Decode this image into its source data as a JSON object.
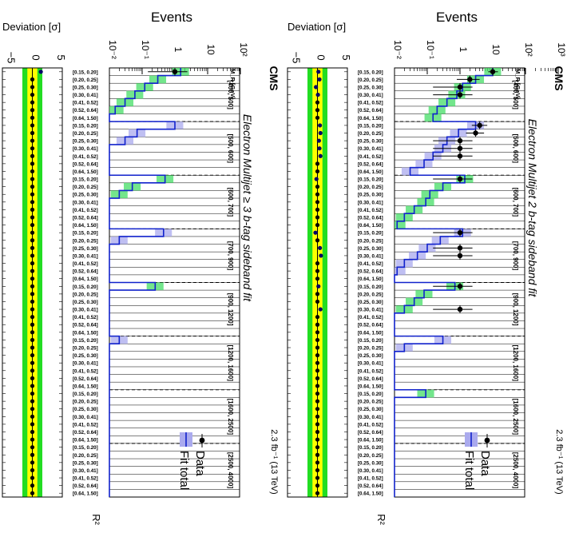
{
  "chart_data": [
    {
      "type": "bar",
      "experiment": "CMS",
      "title": "Electron Multijet 2 b-tag sideband fit",
      "lumi": "2.3 fb⁻¹ (13 TeV)",
      "ylabel": "Events",
      "xlabel": "R²",
      "mr_label": "M_R [GeV]",
      "deviation_label": "Deviation [σ]",
      "yscale": "log",
      "ylim": [
        0.01,
        1000
      ],
      "yticks": [
        "10⁻²",
        "10⁻¹",
        "1",
        "10",
        "10²",
        "10³"
      ],
      "deviation_ticks": [
        "−5",
        "0",
        "5"
      ],
      "legend": [
        "Data",
        "Fit total"
      ],
      "bands": [
        {
          "label": "[400, 500]",
          "r2": [
            "[0.15, 0.20]",
            "[0.20, 0.25]",
            "[0.25, 0.30]",
            "[0.30, 0.41]",
            "[0.41, 0.52]",
            "[0.52, 0.64]",
            "[0.64, 1.50]"
          ],
          "fit": [
            10,
            3,
            1.2,
            0.8,
            0.4,
            0.2,
            0.15
          ],
          "data": [
            10,
            2,
            1,
            1,
            null,
            null,
            null
          ],
          "deviation": [
            0.2,
            0.4,
            -0.3,
            0.1,
            0,
            0,
            0
          ]
        },
        {
          "label": "[500, 600]",
          "r2": [
            "[0.15, 0.20]",
            "[0.20, 0.25]",
            "[0.25, 0.30]",
            "[0.30, 0.41]",
            "[0.41, 0.52]",
            "[0.52, 0.64]",
            "[0.64, 1.50]"
          ],
          "fit": [
            3,
            0.9,
            0.4,
            0.3,
            0.15,
            0.08,
            0.03
          ],
          "data": [
            4,
            3,
            1,
            1,
            1,
            null,
            null
          ],
          "deviation": [
            0.5,
            0.6,
            0.3,
            0.4,
            0.6,
            0,
            0
          ]
        },
        {
          "label": "[600, 700]",
          "r2": [
            "[0.15, 0.20]",
            "[0.20, 0.25]",
            "[0.25, 0.30]",
            "[0.30, 0.41]",
            "[0.41, 0.52]",
            "[0.52, 0.64]",
            "[0.64, 1.50]"
          ],
          "fit": [
            1.4,
            0.3,
            0.12,
            0.09,
            0.04,
            0.02,
            0.012
          ],
          "data": [
            1,
            null,
            null,
            null,
            null,
            null,
            null
          ],
          "deviation": [
            -0.2,
            0,
            0,
            0,
            0,
            0,
            0
          ]
        },
        {
          "label": "[700, 900]",
          "r2": [
            "[0.15, 0.20]",
            "[0.20, 0.25]",
            "[0.25, 0.30]",
            "[0.30, 0.41]",
            "[0.41, 0.52]",
            "[0.52, 0.64]",
            "[0.64, 1.50]"
          ],
          "fit": [
            1.2,
            0.25,
            0.1,
            0.05,
            0.02,
            0.012,
            0.01
          ],
          "data": [
            1,
            null,
            1,
            1,
            null,
            null,
            null
          ],
          "deviation": [
            -0.4,
            0,
            0.5,
            0.7,
            0,
            0,
            0
          ]
        },
        {
          "label": "[900, 1200]",
          "r2": [
            "[0.15, 0.20]",
            "[0.20, 0.25]",
            "[0.25, 0.30]",
            "[0.30, 0.41]",
            "[0.41, 0.52]",
            "[0.52, 0.64]",
            "[0.64, 1.50]"
          ],
          "fit": [
            0.7,
            0.08,
            0.04,
            0.02,
            0.01,
            0.01,
            0.01
          ],
          "data": [
            1,
            null,
            null,
            1,
            null,
            null,
            null
          ],
          "deviation": [
            0.2,
            0,
            0,
            0.6,
            0,
            0,
            0
          ]
        },
        {
          "label": "[1200, 1600]",
          "r2": [
            "[0.15, 0.20]",
            "[0.20, 0.25]",
            "[0.25, 0.30]",
            "[0.30, 0.41]",
            "[0.41, 0.52]",
            "[0.52, 0.64]",
            "[0.64, 1.50]"
          ],
          "fit": [
            0.3,
            0.02,
            0.01,
            0.01,
            0.01,
            0.01,
            0.01
          ],
          "data": [
            null,
            null,
            null,
            null,
            null,
            null,
            null
          ],
          "deviation": [
            0,
            0,
            0,
            0,
            0,
            0,
            0
          ]
        },
        {
          "label": "[1600, 2500]",
          "r2": [
            "[0.15, 0.20]",
            "[0.20, 0.25]",
            "[0.25, 0.30]",
            "[0.30, 0.41]",
            "[0.41, 0.52]",
            "[0.52, 0.64]",
            "[0.64, 1.50]"
          ],
          "fit": [
            0.09,
            0.01,
            0.01,
            0.01,
            0.01,
            0.01,
            0.01
          ],
          "data": [
            null,
            null,
            null,
            null,
            null,
            null,
            null
          ],
          "deviation": [
            0,
            0,
            0,
            0,
            0,
            0,
            0
          ]
        },
        {
          "label": "[2500, 4000]",
          "r2": [
            "[0.15, 0.20]",
            "[0.20, 0.25]",
            "[0.25, 0.30]",
            "[0.30, 0.41]",
            "[0.41, 0.52]",
            "[0.52, 0.64]",
            "[0.64, 1.50]"
          ],
          "fit": [
            0.01,
            0.01,
            0.01,
            0.01,
            0.01,
            0.01,
            0.01
          ],
          "data": [
            null,
            null,
            null,
            null,
            null,
            null,
            null
          ],
          "deviation": [
            0,
            0,
            0,
            0,
            0,
            0,
            0
          ]
        }
      ]
    },
    {
      "type": "bar",
      "experiment": "CMS",
      "title": "Electron Multijet ≥ 3 b-tag sideband fit",
      "lumi": "2.3 fb⁻¹ (13 TeV)",
      "ylabel": "Events",
      "xlabel": "R²",
      "mr_label": "M_R [GeV]",
      "deviation_label": "Deviation [σ]",
      "yscale": "log",
      "ylim": [
        0.01,
        100
      ],
      "yticks": [
        "10⁻²",
        "10⁻¹",
        "1",
        "10",
        "10²"
      ],
      "deviation_ticks": [
        "−5",
        "0",
        "5"
      ],
      "legend": [
        "Data",
        "Fit total"
      ],
      "bands": [
        {
          "label": "[400, 500]",
          "r2": [
            "[0.15, 0.20]",
            "[0.20, 0.25]",
            "[0.25, 0.30]",
            "[0.30, 0.41]",
            "[0.41, 0.52]",
            "[0.52, 0.64]",
            "[0.64, 1.50]"
          ],
          "fit": [
            1.5,
            0.3,
            0.12,
            0.06,
            0.03,
            0.015,
            0.01
          ],
          "data": [
            1,
            null,
            null,
            null,
            null,
            null,
            null
          ],
          "deviation": [
            1.7,
            0,
            0,
            0,
            0,
            0,
            0
          ]
        },
        {
          "label": "[500, 600]",
          "r2": [
            "[0.15, 0.20]",
            "[0.20, 0.25]",
            "[0.25, 0.30]",
            "[0.30, 0.41]",
            "[0.41, 0.52]",
            "[0.52, 0.64]",
            "[0.64, 1.50]"
          ],
          "fit": [
            1.0,
            0.07,
            0.03,
            0.01,
            0.01,
            0.01,
            0.01
          ],
          "data": [
            null,
            null,
            null,
            null,
            null,
            null,
            null
          ],
          "deviation": [
            0,
            0,
            0,
            0,
            0,
            0,
            0
          ]
        },
        {
          "label": "[600, 700]",
          "r2": [
            "[0.15, 0.20]",
            "[0.20, 0.25]",
            "[0.25, 0.30]",
            "[0.30, 0.41]",
            "[0.41, 0.52]",
            "[0.52, 0.64]",
            "[0.64, 1.50]"
          ],
          "fit": [
            0.5,
            0.05,
            0.02,
            0.01,
            0.01,
            0.01,
            0.01
          ],
          "data": [
            null,
            null,
            null,
            null,
            null,
            null,
            null
          ],
          "deviation": [
            0,
            0,
            0,
            0,
            0,
            0,
            0
          ]
        },
        {
          "label": "[700, 900]",
          "r2": [
            "[0.15, 0.20]",
            "[0.20, 0.25]",
            "[0.25, 0.30]",
            "[0.30, 0.41]",
            "[0.41, 0.52]",
            "[0.52, 0.64]",
            "[0.64, 1.50]"
          ],
          "fit": [
            0.45,
            0.02,
            0.01,
            0.01,
            0.01,
            0.01,
            0.01
          ],
          "data": [
            null,
            null,
            null,
            null,
            null,
            null,
            null
          ],
          "deviation": [
            0,
            0,
            0,
            0,
            0,
            0,
            0
          ]
        },
        {
          "label": "[900, 1200]",
          "r2": [
            "[0.15, 0.20]",
            "[0.20, 0.25]",
            "[0.25, 0.30]",
            "[0.30, 0.41]",
            "[0.41, 0.52]",
            "[0.52, 0.64]",
            "[0.64, 1.50]"
          ],
          "fit": [
            0.25,
            0.01,
            0.01,
            0.01,
            0.01,
            0.01,
            0.01
          ],
          "data": [
            null,
            null,
            null,
            null,
            null,
            null,
            null
          ],
          "deviation": [
            0,
            0,
            0,
            0,
            0,
            0,
            0
          ]
        },
        {
          "label": "[1200, 1600]",
          "r2": [
            "[0.15, 0.20]",
            "[0.20, 0.25]",
            "[0.25, 0.30]",
            "[0.30, 0.41]",
            "[0.41, 0.52]",
            "[0.52, 0.64]",
            "[0.64, 1.50]"
          ],
          "fit": [
            0.02,
            0.01,
            0.01,
            0.01,
            0.01,
            0.01,
            0.01
          ],
          "data": [
            null,
            null,
            null,
            null,
            null,
            null,
            null
          ],
          "deviation": [
            0,
            0,
            0,
            0,
            0,
            0,
            0
          ]
        },
        {
          "label": "[1600, 2500]",
          "r2": [
            "[0.15, 0.20]",
            "[0.20, 0.25]",
            "[0.25, 0.30]",
            "[0.30, 0.41]",
            "[0.41, 0.52]",
            "[0.52, 0.64]",
            "[0.64, 1.50]"
          ],
          "fit": [
            0.01,
            0.01,
            0.01,
            0.01,
            0.01,
            0.01,
            0.01
          ],
          "data": [
            null,
            null,
            null,
            null,
            null,
            null,
            null
          ],
          "deviation": [
            0,
            0,
            0,
            0,
            0,
            0,
            0
          ]
        },
        {
          "label": "[2500, 4000]",
          "r2": [
            "[0.15, 0.20]",
            "[0.20, 0.25]",
            "[0.25, 0.30]",
            "[0.30, 0.41]",
            "[0.41, 0.52]",
            "[0.52, 0.64]",
            "[0.64, 1.50]"
          ],
          "fit": [
            0.01,
            0.01,
            0.01,
            0.01,
            0.01,
            0.01,
            0.01
          ],
          "data": [
            null,
            null,
            null,
            null,
            null,
            null,
            null
          ],
          "deviation": [
            0,
            0,
            0,
            0,
            0,
            0,
            0
          ]
        }
      ]
    }
  ]
}
